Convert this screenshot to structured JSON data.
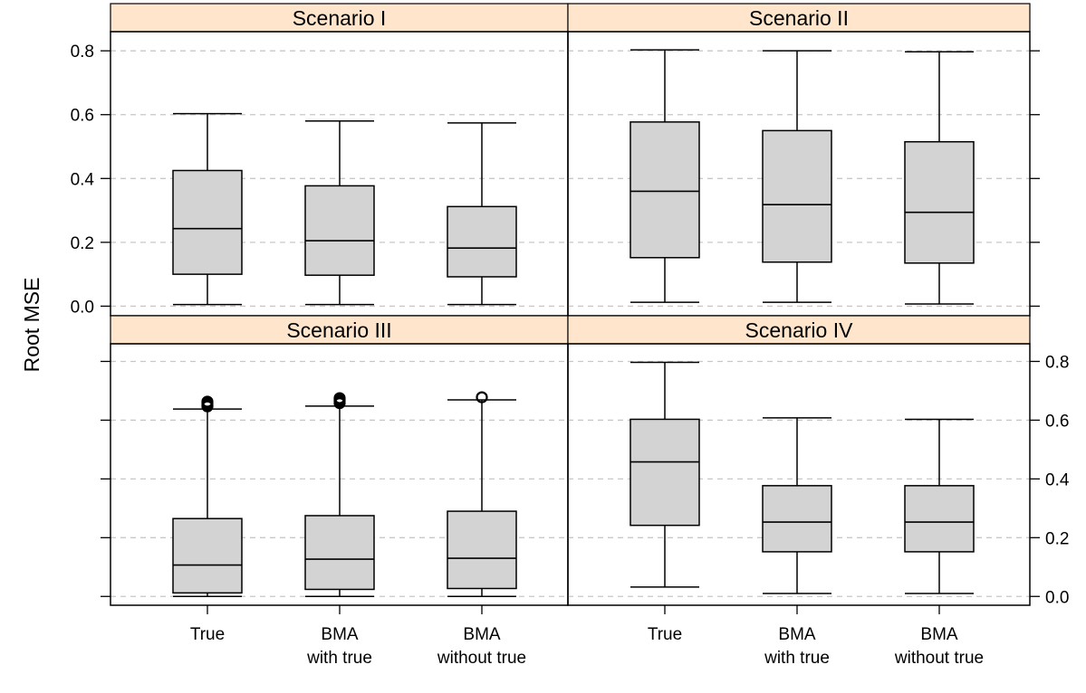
{
  "chart_data": {
    "type": "boxplot",
    "ylabel": "Root MSE",
    "xlabel": "",
    "ylim": [
      -0.03,
      0.86
    ],
    "yticks": [
      0.0,
      0.2,
      0.4,
      0.6,
      0.8
    ],
    "ytick_labels": [
      "0.0",
      "0.2",
      "0.4",
      "0.6",
      "0.8"
    ],
    "grid": "horizontal dashed",
    "categories": [
      {
        "line1": "True",
        "line2": ""
      },
      {
        "line1": "BMA",
        "line2": "with true"
      },
      {
        "line1": "BMA",
        "line2": "without true"
      }
    ],
    "colors": {
      "box_fill": "#d3d3d3",
      "strip_fill": "#ffe5cc",
      "grid": "#c8c8c8",
      "line": "#000000"
    },
    "panels": [
      {
        "title": "Scenario I",
        "boxes": [
          {
            "min": 0.005,
            "q1": 0.1,
            "median": 0.243,
            "q3": 0.425,
            "max": 0.603,
            "outliers": []
          },
          {
            "min": 0.005,
            "q1": 0.097,
            "median": 0.205,
            "q3": 0.377,
            "max": 0.58,
            "outliers": []
          },
          {
            "min": 0.005,
            "q1": 0.092,
            "median": 0.182,
            "q3": 0.312,
            "max": 0.574,
            "outliers": []
          }
        ]
      },
      {
        "title": "Scenario II",
        "boxes": [
          {
            "min": 0.012,
            "q1": 0.152,
            "median": 0.36,
            "q3": 0.577,
            "max": 0.803,
            "outliers": []
          },
          {
            "min": 0.012,
            "q1": 0.138,
            "median": 0.318,
            "q3": 0.55,
            "max": 0.8,
            "outliers": []
          },
          {
            "min": 0.007,
            "q1": 0.135,
            "median": 0.294,
            "q3": 0.515,
            "max": 0.797,
            "outliers": []
          }
        ]
      },
      {
        "title": "Scenario III",
        "boxes": [
          {
            "min": 0.0,
            "q1": 0.012,
            "median": 0.107,
            "q3": 0.265,
            "max": 0.638,
            "outliers": [
              0.647,
              0.652,
              0.658,
              0.663
            ]
          },
          {
            "min": 0.0,
            "q1": 0.024,
            "median": 0.127,
            "q3": 0.275,
            "max": 0.648,
            "outliers": [
              0.658,
              0.664,
              0.67,
              0.675
            ]
          },
          {
            "min": 0.0,
            "q1": 0.027,
            "median": 0.13,
            "q3": 0.29,
            "max": 0.669,
            "outliers": [
              0.678
            ]
          }
        ]
      },
      {
        "title": "Scenario IV",
        "boxes": [
          {
            "min": 0.032,
            "q1": 0.242,
            "median": 0.458,
            "q3": 0.603,
            "max": 0.797,
            "outliers": []
          },
          {
            "min": 0.01,
            "q1": 0.152,
            "median": 0.253,
            "q3": 0.377,
            "max": 0.608,
            "outliers": []
          },
          {
            "min": 0.01,
            "q1": 0.152,
            "median": 0.253,
            "q3": 0.377,
            "max": 0.603,
            "outliers": []
          }
        ]
      }
    ]
  }
}
